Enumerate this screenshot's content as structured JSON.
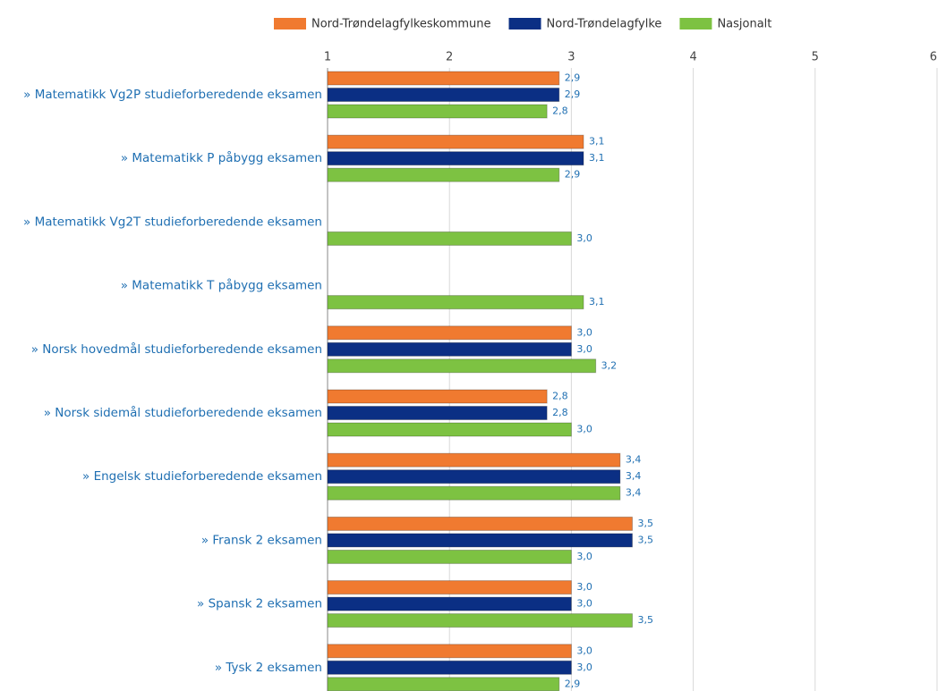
{
  "chart_data": {
    "type": "hbar",
    "categories": [
      "» Matematikk Vg2P studieforberedende eksamen",
      "» Matematikk P påbygg eksamen",
      "» Matematikk Vg2T studieforberedende eksamen",
      "» Matematikk T påbygg eksamen",
      "» Norsk hovedmål studieforberedende eksamen",
      "» Norsk sidemål studieforberedende eksamen",
      "» Engelsk studieforberedende eksamen",
      "» Fransk 2 eksamen",
      "» Spansk 2 eksamen",
      "» Tysk 2 eksamen"
    ],
    "series": [
      {
        "name": "Nord-Trøndelagfylkeskommune",
        "color": "#f07a30",
        "values": [
          2.9,
          3.1,
          null,
          null,
          3.0,
          2.8,
          3.4,
          3.5,
          3.0,
          3.0
        ],
        "value_labels": [
          "2,9",
          "3,1",
          null,
          null,
          "3,0",
          "2,8",
          "3,4",
          "3,5",
          "3,0",
          "3,0"
        ]
      },
      {
        "name": "Nord-Trøndelagfylke",
        "color": "#0b2f84",
        "values": [
          2.9,
          3.1,
          null,
          null,
          3.0,
          2.8,
          3.4,
          3.5,
          3.0,
          3.0
        ],
        "value_labels": [
          "2,9",
          "3,1",
          null,
          null,
          "3,0",
          "2,8",
          "3,4",
          "3,5",
          "3,0",
          "3,0"
        ]
      },
      {
        "name": "Nasjonalt",
        "color": "#7dc242",
        "values": [
          2.8,
          2.9,
          3.0,
          3.1,
          3.2,
          3.0,
          3.4,
          3.0,
          3.5,
          2.9
        ],
        "value_labels": [
          "2,8",
          "2,9",
          "3,0",
          "3,1",
          "3,2",
          "3,0",
          "3,4",
          "3,0",
          "3,5",
          "2,9"
        ]
      }
    ],
    "xlim": [
      1,
      6
    ],
    "xticks": [
      1,
      2,
      3,
      4,
      5,
      6
    ],
    "grid": true,
    "legend": "top"
  }
}
